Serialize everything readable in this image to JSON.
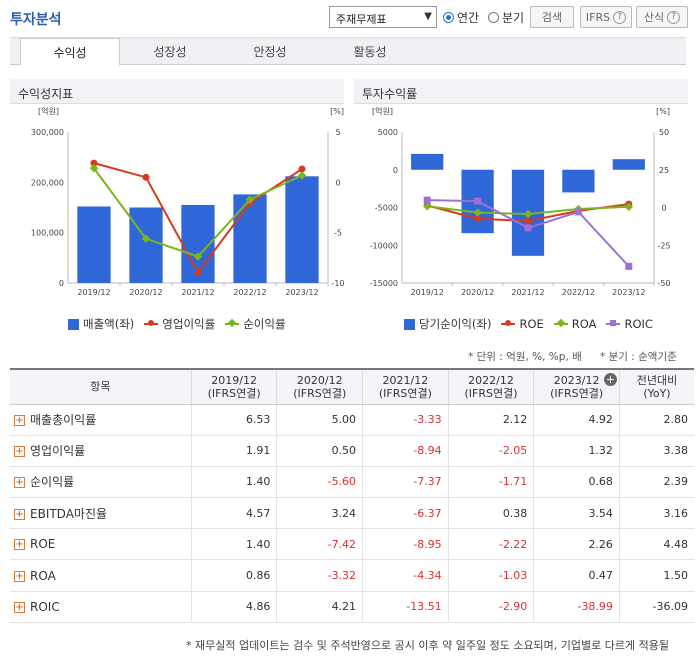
{
  "header": {
    "title": "투자분석",
    "select_value": "주재무제표",
    "radio_annual": "연간",
    "radio_quarter": "분기",
    "search_label": "검색",
    "ifrs_label": "IFRS",
    "formula_label": "산식"
  },
  "tabs": [
    "수익성",
    "성장성",
    "안정성",
    "활동성"
  ],
  "left_chart": {
    "panel_title": "수익성지표",
    "unit_left": "[억원]",
    "unit_right": "[%]",
    "legend": [
      "매출액(좌)",
      "영업이익률",
      "순이익률"
    ],
    "colors": {
      "bar": "#2f67d8",
      "op": "#d63b1f",
      "net": "#7ab51d"
    }
  },
  "right_chart": {
    "panel_title": "투자수익률",
    "unit_left": "[억원]",
    "unit_right": "[%]",
    "legend": [
      "당기순이익(좌)",
      "ROE",
      "ROA",
      "ROIC"
    ],
    "colors": {
      "bar": "#2f67d8",
      "roe": "#d63b1f",
      "roa": "#7ab51d",
      "roic": "#9f6fd6"
    }
  },
  "chart_data": [
    {
      "type": "bar",
      "categories": [
        "2019/12",
        "2020/12",
        "2021/12",
        "2022/12",
        "2023/12"
      ],
      "ylim": [
        0,
        300000
      ],
      "y2lim": [
        -10,
        5
      ],
      "yticks": [
        "300,000",
        "200,000",
        "100,000",
        "0"
      ],
      "y2ticks": [
        "5",
        "0",
        "-5",
        "-10"
      ],
      "series": [
        {
          "name": "매출액(좌)",
          "type": "bar",
          "values": [
            152000,
            150000,
            155000,
            176000,
            212000
          ]
        },
        {
          "name": "영업이익률",
          "type": "line",
          "values": [
            1.91,
            0.5,
            -8.94,
            -2.05,
            1.32
          ]
        },
        {
          "name": "순이익률",
          "type": "line",
          "values": [
            1.4,
            -5.6,
            -7.37,
            -1.71,
            0.68
          ]
        }
      ]
    },
    {
      "type": "bar",
      "categories": [
        "2019/12",
        "2020/12",
        "2021/12",
        "2022/12",
        "2023/12"
      ],
      "ylim": [
        -15000,
        5000
      ],
      "y2lim": [
        -50,
        50
      ],
      "yticks": [
        "5000",
        "0",
        "-5000",
        "-10000",
        "-15000"
      ],
      "y2ticks": [
        "50",
        "25",
        "0",
        "-25",
        "-50"
      ],
      "series": [
        {
          "name": "당기순이익(좌)",
          "type": "bar",
          "values": [
            2100,
            -8400,
            -11400,
            -3000,
            1400
          ]
        },
        {
          "name": "ROE",
          "type": "line",
          "values": [
            1.4,
            -7.42,
            -8.95,
            -2.22,
            2.26
          ]
        },
        {
          "name": "ROA",
          "type": "line",
          "values": [
            0.86,
            -3.32,
            -4.34,
            -1.03,
            0.47
          ]
        },
        {
          "name": "ROIC",
          "type": "line",
          "values": [
            4.86,
            4.21,
            -13.51,
            -2.9,
            -38.99
          ]
        }
      ]
    }
  ],
  "notes": {
    "unit": "* 단위 : 억원, %, %p, 배",
    "quarter": "* 분기 : 순액기준"
  },
  "table": {
    "headers": [
      "항목",
      "2019/12\n(IFRS연결)",
      "2020/12\n(IFRS연결)",
      "2021/12\n(IFRS연결)",
      "2022/12\n(IFRS연결)",
      "2023/12\n(IFRS연결)",
      "전년대비\n(YoY)"
    ],
    "rows": [
      {
        "label": "매출총이익률",
        "values": [
          "6.53",
          "5.00",
          "-3.33",
          "2.12",
          "4.92",
          "2.80"
        ]
      },
      {
        "label": "영업이익률",
        "values": [
          "1.91",
          "0.50",
          "-8.94",
          "-2.05",
          "1.32",
          "3.38"
        ]
      },
      {
        "label": "순이익률",
        "values": [
          "1.40",
          "-5.60",
          "-7.37",
          "-1.71",
          "0.68",
          "2.39"
        ]
      },
      {
        "label": "EBITDA마진율",
        "values": [
          "4.57",
          "3.24",
          "-6.37",
          "0.38",
          "3.54",
          "3.16"
        ]
      },
      {
        "label": "ROE",
        "values": [
          "1.40",
          "-7.42",
          "-8.95",
          "-2.22",
          "2.26",
          "4.48"
        ]
      },
      {
        "label": "ROA",
        "values": [
          "0.86",
          "-3.32",
          "-4.34",
          "-1.03",
          "0.47",
          "1.50"
        ]
      },
      {
        "label": "ROIC",
        "values": [
          "4.86",
          "4.21",
          "-13.51",
          "-2.90",
          "-38.99",
          "-36.09"
        ]
      }
    ]
  },
  "footer": "* 재무실적 업데이트는 검수 및 주석반영으로 공시 이후 약 일주일 정도 소요되며, 기업별로 다르게 적용될"
}
